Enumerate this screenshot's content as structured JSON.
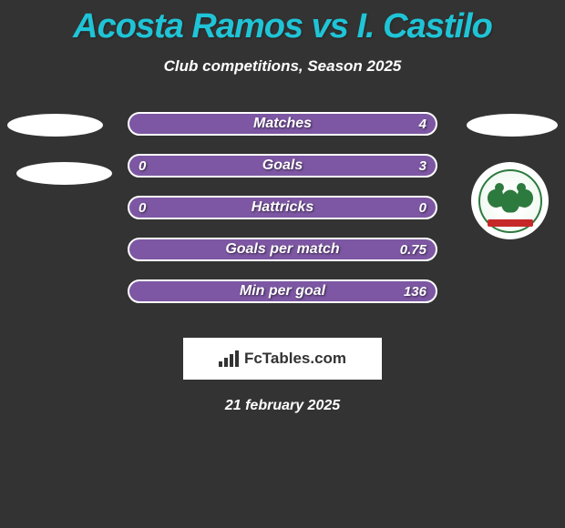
{
  "title": "Acosta Ramos vs I. Castilo",
  "subtitle": "Club competitions, Season 2025",
  "stats": [
    {
      "label": "Matches",
      "left_value": "",
      "right_value": "4",
      "left_fill": 0,
      "right_fill": 0
    },
    {
      "label": "Goals",
      "left_value": "0",
      "right_value": "3",
      "left_fill": 0,
      "right_fill": 0
    },
    {
      "label": "Hattricks",
      "left_value": "0",
      "right_value": "0",
      "left_fill": 0,
      "right_fill": 0
    },
    {
      "label": "Goals per match",
      "left_value": "",
      "right_value": "0.75",
      "left_fill": 0,
      "right_fill": 0
    },
    {
      "label": "Min per goal",
      "left_value": "",
      "right_value": "136",
      "left_fill": 0,
      "right_fill": 0
    }
  ],
  "logo": {
    "text": "FcTables.com"
  },
  "date": "21 february 2025",
  "colors": {
    "background": "#333333",
    "title_color": "#1fc4d6",
    "bar_bg": "#7d57a3",
    "bar_border": "#ffffff",
    "text_white": "#ffffff"
  }
}
